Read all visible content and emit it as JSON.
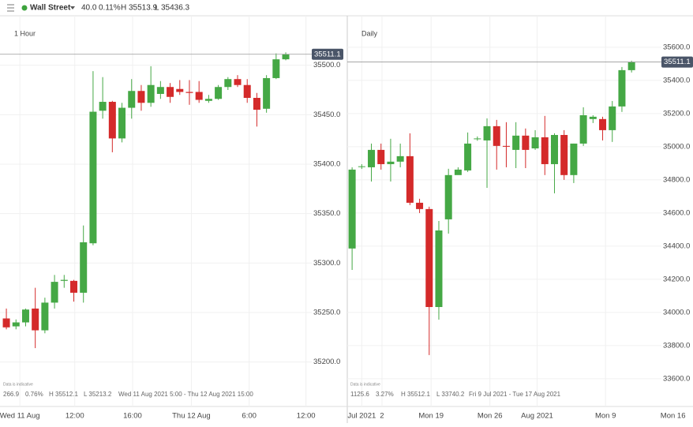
{
  "header": {
    "instrument": "Wall Street",
    "change": "40.0",
    "change_pct": "0.11%",
    "high": "H 35513.9",
    "low": "L 35436.3"
  },
  "chart_data": [
    {
      "type": "candlestick",
      "title": "1 Hour",
      "up_color": "#45a845",
      "down_color": "#d42a2a",
      "open": [
        35244,
        35236,
        35240,
        35254,
        35232,
        35260,
        35282,
        35282,
        35270,
        35320,
        35454,
        35463,
        35426,
        35457,
        35474,
        35462,
        35471,
        35478,
        35476,
        35473,
        35473,
        35464,
        35466,
        35478,
        35486,
        35480,
        35467,
        35456,
        35487,
        35506
      ],
      "high": [
        35254,
        35243,
        35254,
        35275,
        35265,
        35288,
        35288,
        35283,
        35338,
        35494,
        35488,
        35464,
        35462,
        35486,
        35480,
        35499,
        35484,
        35482,
        35485,
        35485,
        35484,
        35470,
        35480,
        35488,
        35490,
        35486,
        35472,
        35490,
        35512,
        35513
      ],
      "low": [
        35233,
        35233,
        35236,
        35214,
        35229,
        35254,
        35275,
        35261,
        35260,
        35318,
        35446,
        35412,
        35422,
        35446,
        35454,
        35458,
        35466,
        35462,
        35470,
        35460,
        35462,
        35462,
        35465,
        35475,
        35478,
        35462,
        35438,
        35452,
        35486,
        35505
      ],
      "close": [
        35235,
        35240,
        35253,
        35232,
        35260,
        35281,
        35283,
        35270,
        35321,
        35453,
        35463,
        35426,
        35457,
        35474,
        35462,
        35480,
        35478,
        35468,
        35473,
        35472,
        35465,
        35466,
        35478,
        35486,
        35480,
        35467,
        35455,
        35487,
        35506,
        35511
      ],
      "xlim": [
        -0.66,
        31.7
      ],
      "xticks": [
        {
          "value": 1.4,
          "label": "Wed 11 Aug"
        },
        {
          "value": 7.1,
          "label": "12:00"
        },
        {
          "value": 13.1,
          "label": "16:00"
        },
        {
          "value": 19.2,
          "label": "Thu 12 Aug"
        },
        {
          "value": 25.2,
          "label": "6:00"
        },
        {
          "value": 31.1,
          "label": "12:00"
        }
      ],
      "ylim": [
        35155,
        35550
      ],
      "yticks": [
        {
          "value": 35200,
          "label": "35200.0"
        },
        {
          "value": 35250,
          "label": "35250.0"
        },
        {
          "value": 35300,
          "label": "35300.0"
        },
        {
          "value": 35350,
          "label": "35350.0"
        },
        {
          "value": 35400,
          "label": "35400.0"
        },
        {
          "value": 35450,
          "label": "35450.0"
        },
        {
          "value": 35500,
          "label": "35500.0"
        }
      ],
      "last_price": 35511.1,
      "note": "Data is indicative",
      "info": [
        "266.9",
        "0.76%",
        "H 35512.1",
        "L 35213.2",
        "Wed 11 Aug 2021 5:00 - Thu 12 Aug 2021 15:00"
      ]
    },
    {
      "type": "candlestick",
      "title": "Daily",
      "up_color": "#45a845",
      "down_color": "#d42a2a",
      "open": [
        34386,
        34878,
        34876,
        34981,
        34895,
        34910,
        34943,
        34662,
        34624,
        34033,
        34562,
        34829,
        34857,
        35048,
        35038,
        35124,
        35005,
        34981,
        35067,
        34990,
        35057,
        34895,
        35071,
        34829,
        35019,
        35167,
        35167,
        35100,
        35243,
        35462
      ],
      "high": [
        34876,
        34895,
        35019,
        35019,
        35048,
        35019,
        35081,
        34686,
        34638,
        34552,
        34867,
        34876,
        35086,
        35062,
        35171,
        35162,
        35148,
        35148,
        35110,
        35100,
        35186,
        35081,
        35100,
        35019,
        35238,
        35190,
        35181,
        35276,
        35481,
        35519
      ],
      "low": [
        34257,
        34866,
        34790,
        34862,
        34790,
        34876,
        34648,
        34600,
        33743,
        33957,
        34476,
        34848,
        34848,
        35036,
        34752,
        34862,
        34876,
        34871,
        34871,
        34981,
        34829,
        34719,
        34800,
        34781,
        35005,
        35143,
        35038,
        35029,
        35210,
        35448
      ],
      "close": [
        34862,
        34882,
        34981,
        34895,
        34910,
        34943,
        34662,
        34624,
        34033,
        34495,
        34829,
        34862,
        35019,
        35050,
        35124,
        35005,
        35000,
        35067,
        34981,
        35057,
        34895,
        35071,
        34829,
        35019,
        35190,
        35181,
        35100,
        35243,
        35462,
        35511
      ],
      "xlim": [
        -0.5,
        32.1
      ],
      "xticks": [
        {
          "value": 1,
          "label": "Jul 2021"
        },
        {
          "value": 3.1,
          "label": "2"
        },
        {
          "value": 8.2,
          "label": "Mon 19"
        },
        {
          "value": 14.3,
          "label": "Mon 26"
        },
        {
          "value": 19.2,
          "label": "Aug 2021"
        },
        {
          "value": 26.3,
          "label": "Mon 9"
        },
        {
          "value": 33.3,
          "label": "Mon 16"
        }
      ],
      "ylim": [
        33433,
        35790
      ],
      "yticks": [
        {
          "value": 33600,
          "label": "33600.0"
        },
        {
          "value": 33800,
          "label": "33800.0"
        },
        {
          "value": 34000,
          "label": "34000.0"
        },
        {
          "value": 34200,
          "label": "34200.0"
        },
        {
          "value": 34400,
          "label": "34400.0"
        },
        {
          "value": 34600,
          "label": "34600.0"
        },
        {
          "value": 34800,
          "label": "34800.0"
        },
        {
          "value": 35000,
          "label": "35000.0"
        },
        {
          "value": 35200,
          "label": "35200.0"
        },
        {
          "value": 35400,
          "label": "35400.0"
        },
        {
          "value": 35600,
          "label": "35600.0"
        }
      ],
      "last_price": 35511.1,
      "note": "Data is indicative",
      "info": [
        "1125.6",
        "3.27%",
        "H 35512.1",
        "L 33740.2",
        "Fri 9 Jul 2021 - Tue 17 Aug 2021"
      ]
    }
  ]
}
